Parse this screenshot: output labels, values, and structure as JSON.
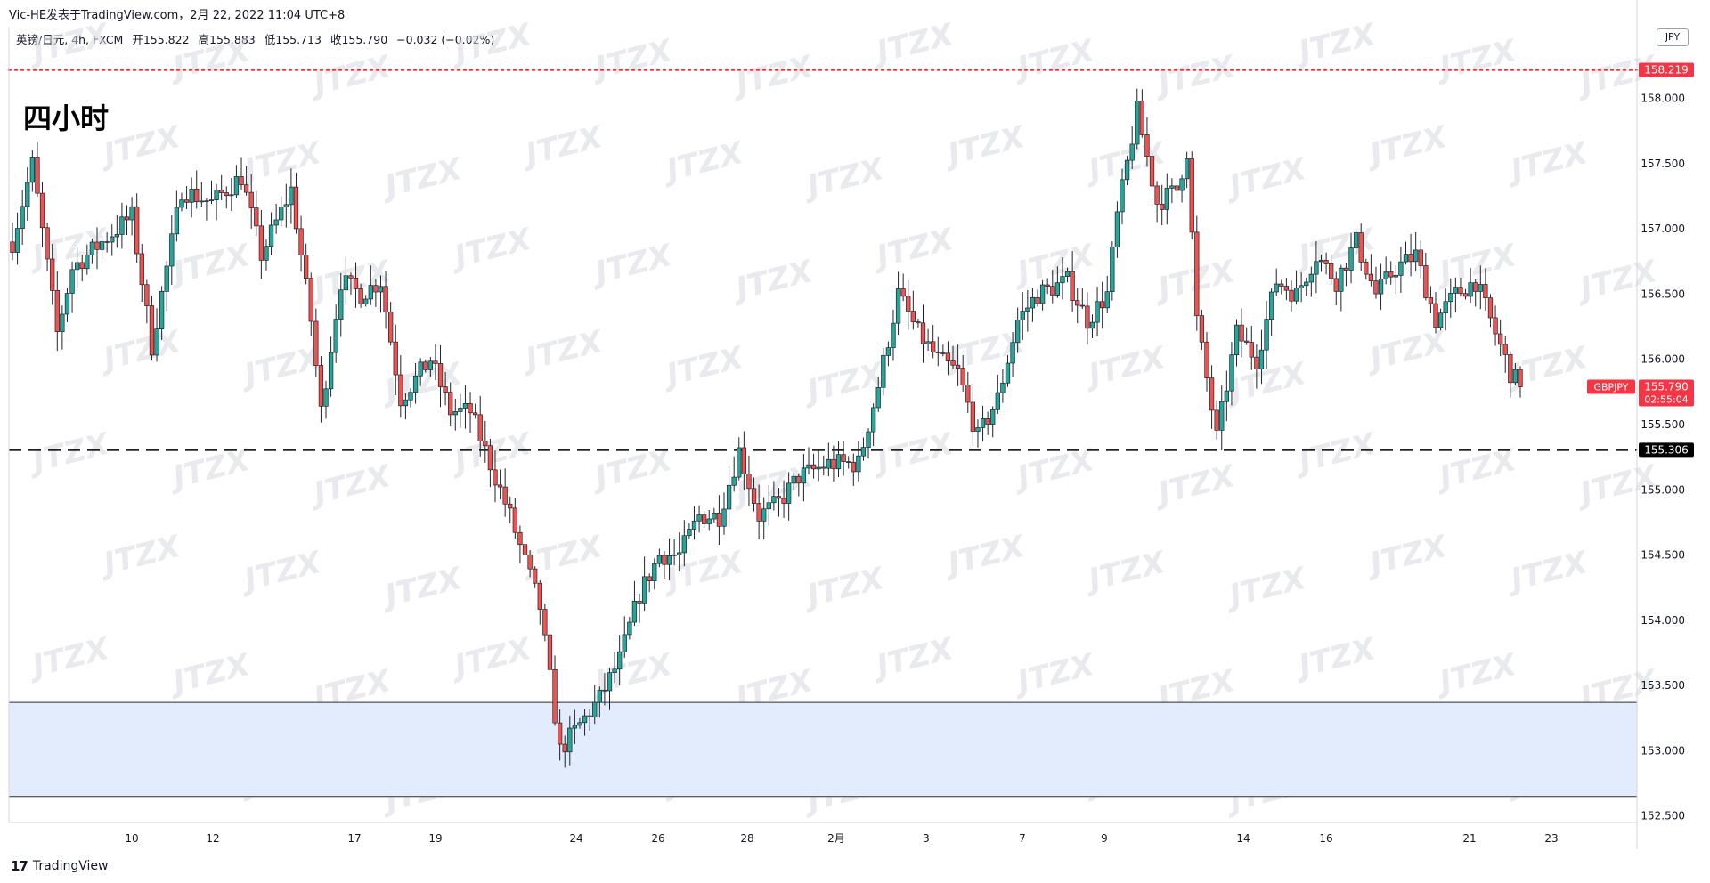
{
  "header": {
    "publisher_line": "Vic-HE发表于TradingView.com，2月 22, 2022 11:04 UTC+8",
    "symbol_desc": "英镑/日元, 4h, FXCM",
    "open_label": "开",
    "open": "155.822",
    "high_label": "高",
    "high": "155.883",
    "low_label": "低",
    "low": "155.713",
    "close_label": "收",
    "close": "155.790",
    "change": "−0.032 (−0.02%)"
  },
  "annotation_title": "四小时",
  "currency": "JPY",
  "branding": "TradingView",
  "watermark": "JTZX",
  "colors": {
    "up": "#26a69a",
    "down": "#ef5350",
    "resistance": "#f23645",
    "zone_fill": "#e3ecfd"
  },
  "chart_data": {
    "type": "candlestick",
    "symbol": "GBPJPY",
    "interval": "4h",
    "y_axis_ticks": [
      "158.000",
      "157.500",
      "157.000",
      "156.500",
      "156.000",
      "155.500",
      "155.000",
      "154.500",
      "154.000",
      "153.500",
      "153.000",
      "152.500"
    ],
    "ylim": [
      152.45,
      158.55
    ],
    "x_axis_ticks": [
      "10",
      "12",
      "17",
      "19",
      "24",
      "26",
      "28",
      "2月",
      "3",
      "7",
      "9",
      "14",
      "16",
      "21",
      "23"
    ],
    "levels": {
      "resistance": {
        "value": 158.219,
        "label": "158.219",
        "style": "dotted"
      },
      "support": {
        "value": 155.306,
        "label": "155.306",
        "style": "dashed"
      },
      "zone": {
        "low": 152.65,
        "high": 153.37
      }
    },
    "last_price": {
      "symbol_label": "GBPJPY",
      "value": "155.790",
      "countdown": "02:55:04"
    },
    "anchors": [
      {
        "bar": 0,
        "price": 156.9
      },
      {
        "bar": 4,
        "price": 157.5
      },
      {
        "bar": 9,
        "price": 156.2
      },
      {
        "bar": 12,
        "price": 156.7
      },
      {
        "bar": 18,
        "price": 156.9
      },
      {
        "bar": 24,
        "price": 157.1
      },
      {
        "bar": 28,
        "price": 156.1
      },
      {
        "bar": 34,
        "price": 157.3
      },
      {
        "bar": 40,
        "price": 157.2
      },
      {
        "bar": 46,
        "price": 157.4
      },
      {
        "bar": 50,
        "price": 156.8
      },
      {
        "bar": 56,
        "price": 157.3
      },
      {
        "bar": 60,
        "price": 156.3
      },
      {
        "bar": 62,
        "price": 155.6
      },
      {
        "bar": 66,
        "price": 156.6
      },
      {
        "bar": 70,
        "price": 156.5
      },
      {
        "bar": 74,
        "price": 156.6
      },
      {
        "bar": 78,
        "price": 155.7
      },
      {
        "bar": 84,
        "price": 156.0
      },
      {
        "bar": 88,
        "price": 155.6
      },
      {
        "bar": 92,
        "price": 155.6
      },
      {
        "bar": 96,
        "price": 155.2
      },
      {
        "bar": 100,
        "price": 154.8
      },
      {
        "bar": 106,
        "price": 154.1
      },
      {
        "bar": 110,
        "price": 153.0
      },
      {
        "bar": 114,
        "price": 153.2
      },
      {
        "bar": 118,
        "price": 153.4
      },
      {
        "bar": 122,
        "price": 153.7
      },
      {
        "bar": 126,
        "price": 154.2
      },
      {
        "bar": 130,
        "price": 154.5
      },
      {
        "bar": 134,
        "price": 154.5
      },
      {
        "bar": 138,
        "price": 154.8
      },
      {
        "bar": 142,
        "price": 154.8
      },
      {
        "bar": 146,
        "price": 155.3
      },
      {
        "bar": 150,
        "price": 154.8
      },
      {
        "bar": 154,
        "price": 154.9
      },
      {
        "bar": 158,
        "price": 155.1
      },
      {
        "bar": 164,
        "price": 155.2
      },
      {
        "bar": 170,
        "price": 155.2
      },
      {
        "bar": 174,
        "price": 155.8
      },
      {
        "bar": 178,
        "price": 156.5
      },
      {
        "bar": 182,
        "price": 156.2
      },
      {
        "bar": 186,
        "price": 156.0
      },
      {
        "bar": 190,
        "price": 155.9
      },
      {
        "bar": 194,
        "price": 155.4
      },
      {
        "bar": 198,
        "price": 155.7
      },
      {
        "bar": 202,
        "price": 156.3
      },
      {
        "bar": 206,
        "price": 156.5
      },
      {
        "bar": 212,
        "price": 156.6
      },
      {
        "bar": 216,
        "price": 156.3
      },
      {
        "bar": 220,
        "price": 156.5
      },
      {
        "bar": 222,
        "price": 157.1
      },
      {
        "bar": 226,
        "price": 157.9
      },
      {
        "bar": 230,
        "price": 157.2
      },
      {
        "bar": 234,
        "price": 157.3
      },
      {
        "bar": 236,
        "price": 157.6
      },
      {
        "bar": 238,
        "price": 156.3
      },
      {
        "bar": 242,
        "price": 155.4
      },
      {
        "bar": 246,
        "price": 156.2
      },
      {
        "bar": 250,
        "price": 156.0
      },
      {
        "bar": 254,
        "price": 156.6
      },
      {
        "bar": 258,
        "price": 156.5
      },
      {
        "bar": 262,
        "price": 156.8
      },
      {
        "bar": 266,
        "price": 156.6
      },
      {
        "bar": 270,
        "price": 156.9
      },
      {
        "bar": 274,
        "price": 156.5
      },
      {
        "bar": 278,
        "price": 156.7
      },
      {
        "bar": 282,
        "price": 156.8
      },
      {
        "bar": 286,
        "price": 156.3
      },
      {
        "bar": 290,
        "price": 156.5
      },
      {
        "bar": 294,
        "price": 156.6
      },
      {
        "bar": 298,
        "price": 156.2
      },
      {
        "bar": 301,
        "price": 155.9
      },
      {
        "bar": 303,
        "price": 155.79
      }
    ]
  }
}
